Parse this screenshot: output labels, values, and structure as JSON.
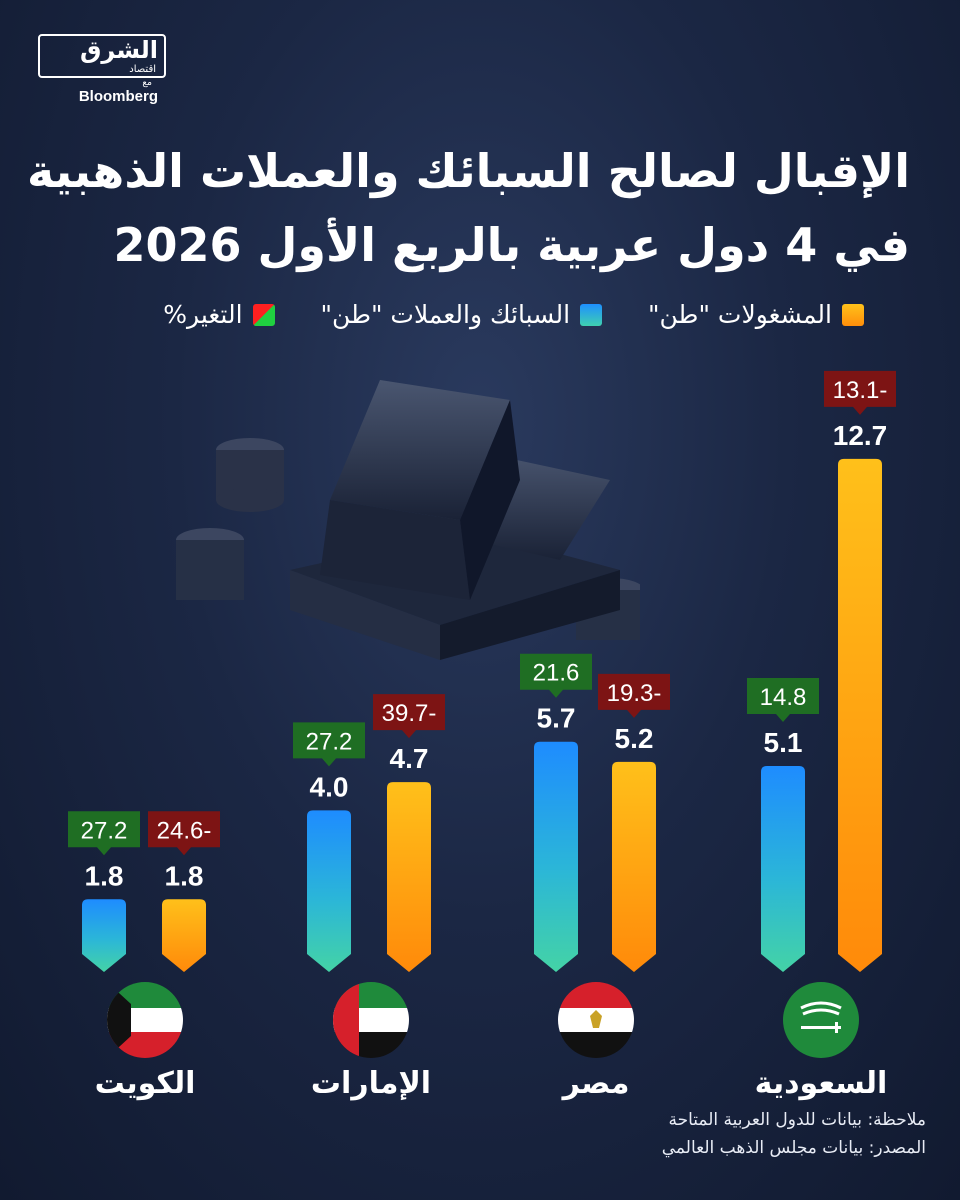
{
  "logo": {
    "brand": "الشرق",
    "sub": "اقتصاد",
    "with": "مع",
    "partner": "Bloomberg"
  },
  "chart_data": {
    "type": "bar",
    "title": [
      "الإقبال لصالح السبائك والعملات الذهبية",
      "في 4 دول عربية بالربع الأول 2026"
    ],
    "legend": [
      {
        "name": "المشغولات \"طن\"",
        "color": "#ffa20f"
      },
      {
        "name": "السبائك والعملات \"طن\"",
        "color": "#1e90ff"
      },
      {
        "name": "التغير%",
        "colors": [
          "#ff2020",
          "#20d040"
        ]
      }
    ],
    "categories": [
      "الكويت",
      "الإمارات",
      "مصر",
      "السعودية"
    ],
    "series": [
      {
        "name": "السبائك والعملات \"طن\"",
        "values": [
          1.8,
          4.0,
          5.7,
          5.1
        ],
        "labels": [
          "1.8",
          "4.0",
          "5.7",
          "5.1"
        ],
        "change": [
          "27.2",
          "27.2",
          "21.6",
          "14.8"
        ],
        "change_color": "#1f6e23"
      },
      {
        "name": "المشغولات \"طن\"",
        "values": [
          1.8,
          4.7,
          5.2,
          12.7
        ],
        "labels": [
          "1.8",
          "4.7",
          "5.2",
          "12.7"
        ],
        "change": [
          "24.6-",
          "39.7-",
          "19.3-",
          "13.1-"
        ],
        "change_color": "#7d1414"
      }
    ]
  },
  "notes": {
    "note": "ملاحظة: بيانات للدول العربية المتاحة",
    "source": "المصدر: بيانات مجلس الذهب العالمي"
  }
}
